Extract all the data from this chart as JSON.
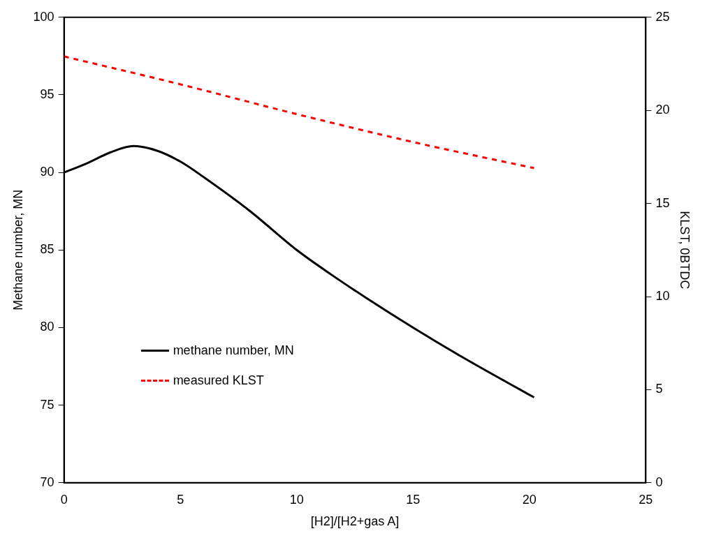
{
  "chart_data": {
    "type": "line",
    "xlabel": "[H2]/[H2+gas A]",
    "ylabel": "Methane number, MN",
    "y2label": "KLST, 0BTDC",
    "xlim": [
      0,
      25
    ],
    "xticks": [
      0,
      5,
      10,
      15,
      20,
      25
    ],
    "ylim": [
      70,
      100
    ],
    "yticks": [
      70,
      75,
      80,
      85,
      90,
      95,
      100
    ],
    "y2lim": [
      0,
      25
    ],
    "y2ticks": [
      0,
      5,
      10,
      15,
      20,
      25
    ],
    "grid": false,
    "legend": "bottom left",
    "marker": "none",
    "series": [
      {
        "name": "methane number, MN",
        "color": "#000000",
        "line_style": "solid",
        "x": [
          0,
          1,
          2,
          3,
          4,
          5,
          6,
          8,
          10,
          11.5,
          13,
          15,
          17,
          19,
          20.2
        ],
        "values": [
          90.0,
          90.6,
          91.3,
          91.7,
          91.4,
          90.7,
          89.7,
          87.5,
          85.0,
          83.4,
          81.9,
          80.0,
          78.2,
          76.5,
          75.5
        ]
      },
      {
        "name": "measured KLST",
        "color": "#ff0000",
        "line_style": "dashed",
        "axis": "y2",
        "x": [
          0,
          5,
          10,
          15,
          20.2
        ],
        "values": [
          22.9,
          21.4,
          19.8,
          18.3,
          16.9
        ]
      }
    ]
  }
}
